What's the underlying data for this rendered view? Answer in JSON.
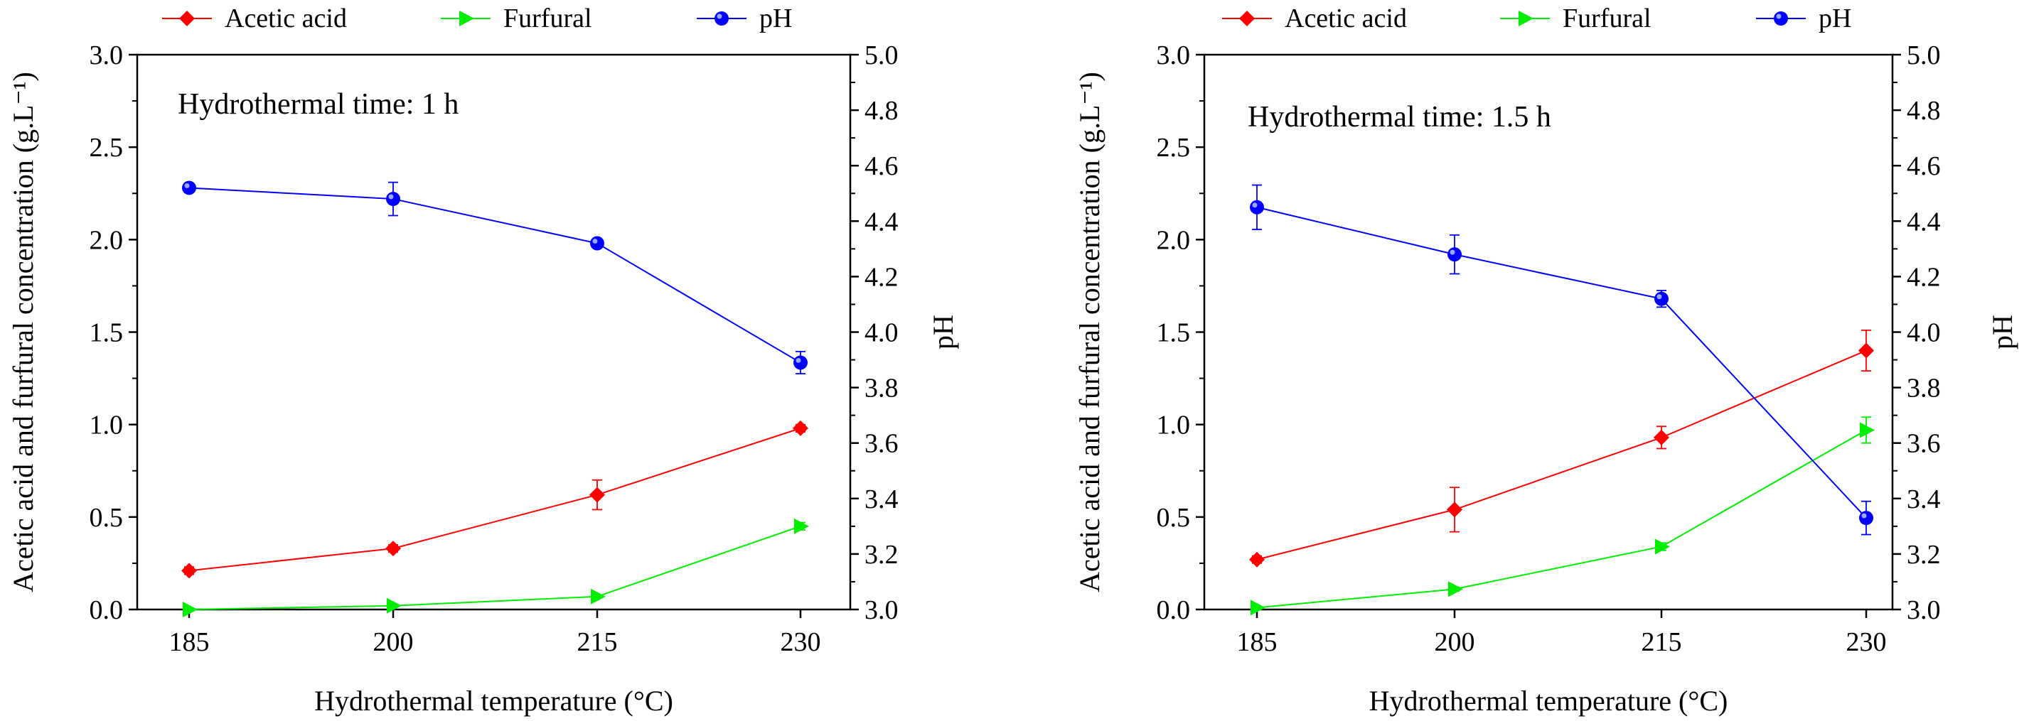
{
  "legend": [
    "Acetic acid",
    "Furfural",
    "pH"
  ],
  "chart_data": [
    {
      "type": "line",
      "annotation": "Hydrothermal time: 1 h",
      "xlabel": "Hydrothermal temperature (°C)",
      "ylabel": "Acetic acid and furfural concentration (g.L⁻¹)",
      "y2label": "pH",
      "x": [
        185,
        200,
        215,
        230
      ],
      "xticks": [
        "185",
        "200",
        "215",
        "230"
      ],
      "ylim": [
        0,
        3.0
      ],
      "yticks": [
        "0.0",
        "0.5",
        "1.0",
        "1.5",
        "2.0",
        "2.5",
        "3.0"
      ],
      "y2lim": [
        3.0,
        5.0
      ],
      "y2ticks": [
        "3.0",
        "3.2",
        "3.4",
        "3.6",
        "3.8",
        "4.0",
        "4.2",
        "4.4",
        "4.6",
        "4.8",
        "5.0"
      ],
      "series": [
        {
          "name": "Acetic acid",
          "axis": "left",
          "color": "#ff0000",
          "marker": "diamond",
          "values": [
            0.21,
            0.33,
            0.62,
            0.98
          ],
          "errors": [
            0.02,
            0.02,
            0.08,
            0.02
          ]
        },
        {
          "name": "Furfural",
          "axis": "left",
          "color": "#00ee00",
          "marker": "triangle-right",
          "values": [
            0.0,
            0.02,
            0.07,
            0.45
          ],
          "errors": [
            0.0,
            0.0,
            0.0,
            0.02
          ]
        },
        {
          "name": "pH",
          "axis": "right",
          "color": "#0000ff",
          "marker": "circle",
          "values": [
            4.52,
            4.48,
            4.32,
            3.89
          ],
          "errors": [
            0.01,
            0.06,
            0.01,
            0.04
          ]
        }
      ]
    },
    {
      "type": "line",
      "annotation": "Hydrothermal time: 1.5 h",
      "xlabel": "Hydrothermal temperature (°C)",
      "ylabel": "Acetic acid and furfural concentration (g.L⁻¹)",
      "y2label": "pH",
      "x": [
        185,
        200,
        215,
        230
      ],
      "xticks": [
        "185",
        "200",
        "215",
        "230"
      ],
      "ylim": [
        0,
        3.0
      ],
      "yticks": [
        "0.0",
        "0.5",
        "1.0",
        "1.5",
        "2.0",
        "2.5",
        "3.0"
      ],
      "y2lim": [
        3.0,
        5.0
      ],
      "y2ticks": [
        "3.0",
        "3.2",
        "3.4",
        "3.6",
        "3.8",
        "4.0",
        "4.2",
        "4.4",
        "4.6",
        "4.8",
        "5.0"
      ],
      "series": [
        {
          "name": "Acetic acid",
          "axis": "left",
          "color": "#ff0000",
          "marker": "diamond",
          "values": [
            0.27,
            0.54,
            0.93,
            1.4
          ],
          "errors": [
            0.02,
            0.12,
            0.06,
            0.11
          ]
        },
        {
          "name": "Furfural",
          "axis": "left",
          "color": "#00ee00",
          "marker": "triangle-right",
          "values": [
            0.01,
            0.11,
            0.34,
            0.97
          ],
          "errors": [
            0.0,
            0.01,
            0.02,
            0.07
          ]
        },
        {
          "name": "pH",
          "axis": "right",
          "color": "#0000ff",
          "marker": "circle",
          "values": [
            4.45,
            4.28,
            4.12,
            3.33
          ],
          "errors": [
            0.08,
            0.07,
            0.03,
            0.06
          ]
        }
      ]
    }
  ]
}
